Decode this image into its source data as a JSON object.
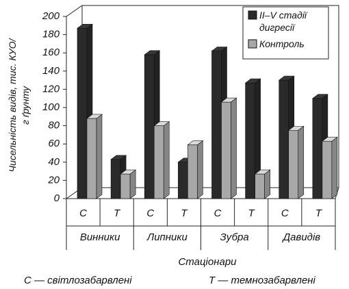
{
  "chart_data": {
    "type": "bar3d",
    "ylabel": "Чисельність видів, тис. КУО/г ґрунту",
    "xlabel": "Стаціонари",
    "footnotes": [
      "С — світлозабарвлені",
      "Т — темнозабарвлені"
    ],
    "categories": [
      "С",
      "Т",
      "С",
      "Т",
      "С",
      "Т",
      "С",
      "Т"
    ],
    "groups": [
      "Винники",
      "Липники",
      "Зубра",
      "Давидів"
    ],
    "series": [
      {
        "name": "II–V стадії дигресії",
        "color": "#2a2a2a",
        "values": [
          187,
          43,
          158,
          40,
          162,
          127,
          130,
          110
        ]
      },
      {
        "name": "Контроль",
        "color": "#a8a8a8",
        "values": [
          88,
          27,
          80,
          59,
          106,
          27,
          75,
          63
        ]
      }
    ],
    "ylim": [
      0,
      200
    ],
    "yticks": [
      0,
      20,
      40,
      60,
      80,
      100,
      120,
      140,
      160,
      180,
      200
    ],
    "legend": "top-right"
  }
}
